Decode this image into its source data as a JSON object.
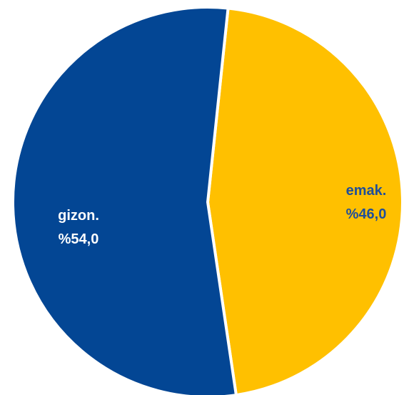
{
  "chart_data": {
    "type": "pie",
    "slices": [
      {
        "label": "emak.",
        "value": 46.0,
        "value_label": "%46,0",
        "color": "#FFC000",
        "label_color": "#1F4E9A"
      },
      {
        "label": "gizon.",
        "value": 54.0,
        "value_label": "%54,0",
        "color": "#034694",
        "label_color": "#FFFFFF"
      }
    ],
    "legend": "none"
  }
}
